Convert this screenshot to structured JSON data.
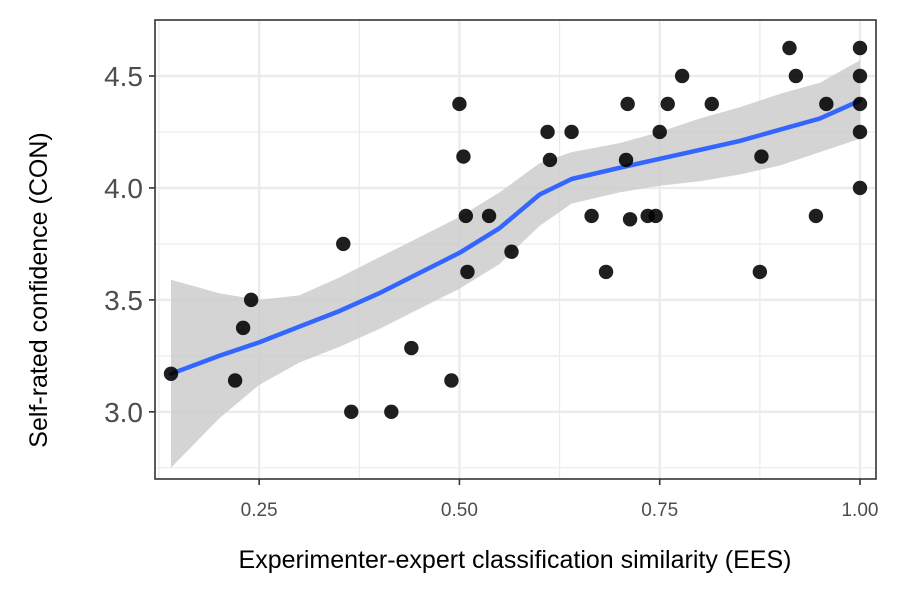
{
  "chart_data": {
    "type": "scatter",
    "xlabel": "Experimenter-expert classification similarity (EES)",
    "ylabel": "Self-rated confidence (CON)",
    "xlim": [
      0.12,
      1.02
    ],
    "ylim": [
      2.7,
      4.75
    ],
    "x_ticks": [
      0.25,
      0.5,
      0.75,
      1.0
    ],
    "x_tick_labels": [
      "0.25",
      "0.50",
      "0.75",
      "1.00"
    ],
    "y_ticks": [
      3.0,
      3.5,
      4.0,
      4.5
    ],
    "y_tick_labels": [
      "3.0",
      "3.5",
      "4.0",
      "4.5"
    ],
    "grid": true,
    "colors": {
      "points": "#000000",
      "smooth": "#3366ff",
      "band": "#cccccc",
      "grid": "#ebebeb"
    },
    "points": [
      {
        "x": 0.14,
        "y": 3.17
      },
      {
        "x": 0.22,
        "y": 3.14
      },
      {
        "x": 0.23,
        "y": 3.375
      },
      {
        "x": 0.24,
        "y": 3.5
      },
      {
        "x": 0.355,
        "y": 3.75
      },
      {
        "x": 0.365,
        "y": 3.0
      },
      {
        "x": 0.415,
        "y": 3.0
      },
      {
        "x": 0.44,
        "y": 3.285
      },
      {
        "x": 0.49,
        "y": 3.14
      },
      {
        "x": 0.5,
        "y": 4.375
      },
      {
        "x": 0.505,
        "y": 4.14
      },
      {
        "x": 0.508,
        "y": 3.875
      },
      {
        "x": 0.51,
        "y": 3.625
      },
      {
        "x": 0.537,
        "y": 3.875
      },
      {
        "x": 0.565,
        "y": 3.715
      },
      {
        "x": 0.61,
        "y": 4.25
      },
      {
        "x": 0.613,
        "y": 4.125
      },
      {
        "x": 0.64,
        "y": 4.25
      },
      {
        "x": 0.665,
        "y": 3.875
      },
      {
        "x": 0.683,
        "y": 3.625
      },
      {
        "x": 0.708,
        "y": 4.125
      },
      {
        "x": 0.71,
        "y": 4.375
      },
      {
        "x": 0.713,
        "y": 3.86
      },
      {
        "x": 0.735,
        "y": 3.875
      },
      {
        "x": 0.745,
        "y": 3.875
      },
      {
        "x": 0.75,
        "y": 4.25
      },
      {
        "x": 0.76,
        "y": 4.375
      },
      {
        "x": 0.778,
        "y": 4.5
      },
      {
        "x": 0.815,
        "y": 4.375
      },
      {
        "x": 0.875,
        "y": 3.625
      },
      {
        "x": 0.877,
        "y": 4.14
      },
      {
        "x": 0.912,
        "y": 4.625
      },
      {
        "x": 0.92,
        "y": 4.5
      },
      {
        "x": 0.945,
        "y": 3.875
      },
      {
        "x": 0.958,
        "y": 4.375
      },
      {
        "x": 1.0,
        "y": 4.625
      },
      {
        "x": 1.0,
        "y": 4.5
      },
      {
        "x": 1.0,
        "y": 4.375
      },
      {
        "x": 1.0,
        "y": 4.25
      },
      {
        "x": 1.0,
        "y": 4.0
      }
    ],
    "smooth": {
      "x": [
        0.14,
        0.2,
        0.25,
        0.3,
        0.35,
        0.4,
        0.45,
        0.5,
        0.55,
        0.6,
        0.64,
        0.7,
        0.75,
        0.8,
        0.85,
        0.9,
        0.95,
        1.0
      ],
      "y": [
        3.17,
        3.25,
        3.31,
        3.38,
        3.45,
        3.53,
        3.62,
        3.71,
        3.82,
        3.97,
        4.04,
        4.09,
        4.13,
        4.17,
        4.21,
        4.26,
        4.31,
        4.39
      ],
      "lower": [
        2.75,
        2.97,
        3.12,
        3.22,
        3.29,
        3.37,
        3.46,
        3.55,
        3.66,
        3.83,
        3.93,
        3.98,
        4.01,
        4.03,
        4.06,
        4.1,
        4.16,
        4.22
      ],
      "upper": [
        3.59,
        3.53,
        3.5,
        3.52,
        3.6,
        3.69,
        3.78,
        3.87,
        3.98,
        4.11,
        4.16,
        4.2,
        4.25,
        4.31,
        4.36,
        4.42,
        4.47,
        4.57
      ]
    }
  }
}
